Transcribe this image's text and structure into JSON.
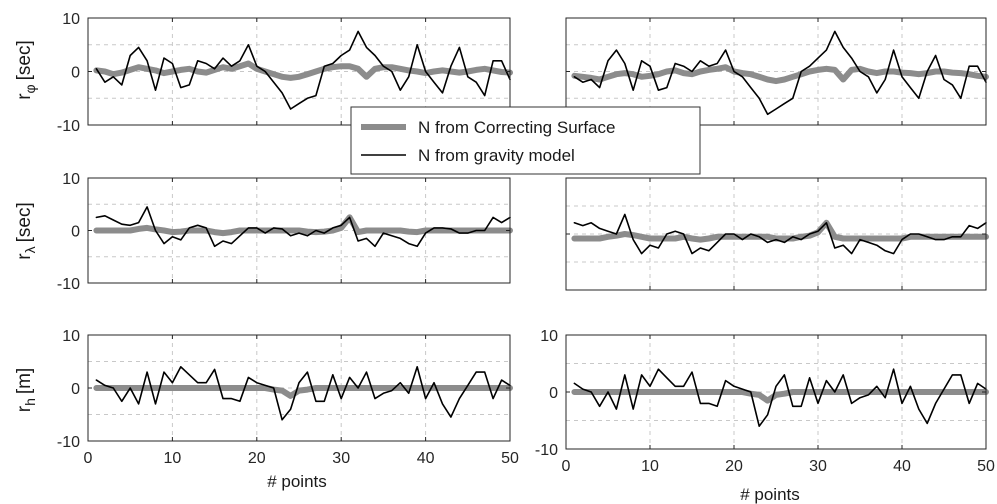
{
  "chart_data": {
    "type": "line",
    "layout": "3 rows x 2 columns",
    "x": [
      1,
      2,
      3,
      4,
      5,
      6,
      7,
      8,
      9,
      10,
      11,
      12,
      13,
      14,
      15,
      16,
      17,
      18,
      19,
      20,
      21,
      22,
      23,
      24,
      25,
      26,
      27,
      28,
      29,
      30,
      31,
      32,
      33,
      34,
      35,
      36,
      37,
      38,
      39,
      40,
      41,
      42,
      43,
      44,
      45,
      46,
      47,
      48,
      49,
      50
    ],
    "xlim": [
      0,
      50
    ],
    "xticks": [
      0,
      10,
      20,
      30,
      40,
      50
    ],
    "xlabel": "# points",
    "grid": true,
    "legend": {
      "placement": "center, overlapping top row",
      "entries": [
        "N from Correcting Surface",
        "N from gravity model"
      ]
    },
    "series_styles": [
      {
        "name": "N from Correcting Surface",
        "color": "#8c8c8c",
        "width": "thick"
      },
      {
        "name": "N from gravity model",
        "color": "#000000",
        "width": "thin"
      }
    ],
    "row_labels": [
      {
        "main": "r",
        "sub": "φ",
        "unit": "[sec]"
      },
      {
        "main": "r",
        "sub": "λ",
        "unit": "[sec]"
      },
      {
        "main": "r",
        "sub": "h",
        "unit": "[m]"
      }
    ],
    "panels": [
      {
        "row": 0,
        "col": 0,
        "ylim": [
          -10,
          10
        ],
        "yticks": [
          -10,
          0,
          10
        ],
        "show_xticks": false,
        "series": [
          {
            "name": "N from Correcting Surface",
            "values": [
              0.2,
              0,
              -0.5,
              -0.2,
              0.3,
              0.8,
              0.5,
              0.2,
              -0.3,
              0,
              0.3,
              0.5,
              0,
              -0.2,
              0.3,
              0.8,
              0.5,
              1,
              1.5,
              0.5,
              0,
              -0.5,
              -1,
              -1.2,
              -1,
              -0.5,
              0,
              0.5,
              0.8,
              1,
              1,
              0.5,
              -1,
              0.5,
              0.8,
              0.8,
              0.5,
              0.2,
              0,
              -0.3,
              0,
              0.2,
              0,
              -0.2,
              0,
              0.3,
              0.5,
              0.2,
              -0.1,
              -0.2
            ]
          },
          {
            "name": "N from gravity model",
            "values": [
              0.5,
              -2,
              -1,
              -2.5,
              3,
              4.5,
              2,
              -3.5,
              2.5,
              1.5,
              -3,
              -2.5,
              2,
              1.5,
              0.5,
              2.5,
              1,
              2,
              5,
              1,
              0,
              -2,
              -4,
              -7,
              -6,
              -5,
              -4.5,
              1,
              1.5,
              3,
              4,
              7.5,
              4.5,
              3,
              1,
              0,
              -3.5,
              -1,
              5,
              0,
              -2,
              -4,
              1,
              4.5,
              -1,
              -2,
              -4.5,
              2,
              2,
              -1.5
            ]
          }
        ]
      },
      {
        "row": 0,
        "col": 1,
        "ylim": [
          -10,
          10
        ],
        "yticks": [],
        "show_xticks": false,
        "series": [
          {
            "name": "N from Correcting Surface",
            "values": [
              -0.8,
              -1,
              -1.2,
              -1.5,
              -1,
              -0.5,
              -0.3,
              -0.5,
              -1,
              -0.8,
              -0.5,
              0,
              0.2,
              -0.3,
              -0.5,
              0,
              0.3,
              0.5,
              0.8,
              0,
              -0.3,
              -0.5,
              -1,
              -1.5,
              -1.8,
              -1.5,
              -1,
              -0.5,
              0,
              0.3,
              0.5,
              0.3,
              -1.5,
              0.3,
              0.5,
              0,
              -0.3,
              0,
              0,
              -0.2,
              -0.3,
              -0.5,
              -0.3,
              0,
              0,
              -0.2,
              -0.3,
              -0.5,
              -0.8,
              -1
            ]
          },
          {
            "name": "N from gravity model",
            "values": [
              -1,
              -2,
              -1.5,
              -3,
              2,
              4,
              1.5,
              -3.5,
              2,
              1,
              -3.5,
              -3,
              1.5,
              1,
              0,
              2,
              1,
              1.5,
              4,
              0,
              -1,
              -3,
              -5,
              -8,
              -7,
              -6,
              -5,
              0,
              1,
              2.5,
              4,
              7.5,
              4.5,
              2.5,
              0,
              -1,
              -4,
              -1.5,
              4,
              -1,
              -3,
              -5,
              0,
              3,
              -1.5,
              -2.5,
              -5,
              1,
              1,
              -2
            ]
          }
        ]
      },
      {
        "row": 1,
        "col": 0,
        "ylim": [
          -10,
          10
        ],
        "yticks": [
          -10,
          0,
          10
        ],
        "show_xticks": false,
        "series": [
          {
            "name": "N from Correcting Surface",
            "values": [
              0,
              0,
              0,
              0,
              0,
              0.3,
              0.5,
              0.2,
              0,
              -0.3,
              -0.2,
              0,
              0,
              0,
              -0.3,
              -0.5,
              -0.3,
              0,
              0,
              0,
              0,
              0,
              0,
              0,
              0,
              -0.2,
              -0.3,
              -0.2,
              0,
              0.5,
              2.5,
              -0.3,
              0,
              0,
              0,
              0,
              0,
              -0.2,
              -0.3,
              0,
              0,
              0,
              0,
              0,
              0,
              0,
              0,
              0,
              0,
              0
            ]
          },
          {
            "name": "N from gravity model",
            "values": [
              2.5,
              2.8,
              2,
              1.2,
              1,
              1.5,
              4.5,
              0,
              -2.5,
              -1.2,
              -1.8,
              0.5,
              1,
              0.5,
              -3,
              -2,
              -2.5,
              -1,
              0.5,
              0.5,
              -0.5,
              0.5,
              0.3,
              -1,
              -0.5,
              -1,
              0,
              -0.5,
              0.5,
              1,
              2.5,
              -2,
              -1.5,
              -3,
              -0.5,
              -1,
              -1.5,
              -2.5,
              -3,
              -0.5,
              0.5,
              0.5,
              0.3,
              -0.5,
              -0.5,
              0,
              0,
              2.5,
              1.5,
              2.5
            ]
          }
        ]
      },
      {
        "row": 1,
        "col": 1,
        "ylim": [
          -10,
          10
        ],
        "yticks": [],
        "show_xticks": false,
        "series": [
          {
            "name": "N from Correcting Surface",
            "values": [
              -0.8,
              -0.8,
              -0.8,
              -0.8,
              -0.5,
              -0.3,
              0,
              -0.2,
              -0.5,
              -0.8,
              -0.8,
              -0.8,
              -0.8,
              -0.5,
              -0.8,
              -1,
              -0.8,
              -0.5,
              -0.5,
              -0.5,
              -0.5,
              -0.5,
              -0.5,
              -0.5,
              -0.8,
              -0.8,
              -0.8,
              -0.5,
              -0.3,
              0.3,
              2,
              -0.5,
              -0.8,
              -0.8,
              -0.8,
              -0.8,
              -0.8,
              -0.8,
              -0.8,
              -0.8,
              -0.5,
              -0.5,
              -0.5,
              -0.5,
              -0.5,
              -0.5,
              -0.5,
              -0.5,
              -0.5,
              -0.5
            ]
          },
          {
            "name": "N from gravity model",
            "values": [
              2,
              1.5,
              2,
              1,
              0.5,
              0,
              3.5,
              -1,
              -3.5,
              -2,
              -2.5,
              0,
              0.5,
              0,
              -3.5,
              -2.5,
              -3,
              -1.5,
              0,
              0,
              -1,
              0,
              -0.5,
              -1.5,
              -1,
              -1.5,
              -0.5,
              -1,
              0,
              0.5,
              2,
              -2.5,
              -2,
              -3.5,
              -1,
              -1.5,
              -2,
              -3,
              -3.5,
              -1,
              0,
              0,
              -0.5,
              -1,
              -1,
              -0.5,
              -0.5,
              1.5,
              1,
              2
            ]
          }
        ]
      },
      {
        "row": 2,
        "col": 0,
        "ylim": [
          -10,
          10
        ],
        "yticks": [
          -10,
          0,
          10
        ],
        "show_xticks": true,
        "series": [
          {
            "name": "N from Correcting Surface",
            "values": [
              0,
              0,
              0,
              0,
              0,
              0,
              0,
              0,
              0,
              0,
              0,
              0,
              0,
              0,
              0,
              0,
              0,
              0,
              0,
              0,
              0,
              -0.3,
              -0.5,
              -1.5,
              -0.5,
              -0.3,
              0,
              0,
              0,
              0,
              0,
              0,
              0,
              0,
              0,
              0,
              0,
              0,
              0,
              0,
              0,
              0,
              0,
              0,
              0,
              0,
              0,
              0,
              0,
              0
            ]
          },
          {
            "name": "N from gravity model",
            "values": [
              1.5,
              0.5,
              0,
              -2.5,
              0,
              -3,
              3,
              -3,
              3,
              1,
              4,
              2.5,
              1,
              1,
              3.5,
              -2,
              -2,
              -2.5,
              2,
              1,
              0.5,
              0,
              -6,
              -4,
              1,
              3,
              -2.5,
              -2.5,
              2.5,
              -2,
              2,
              0,
              3,
              -2,
              -1,
              -0.5,
              1,
              -1,
              4,
              -2,
              1,
              -3,
              -5.5,
              -2,
              0.5,
              3,
              3,
              -2,
              1.5,
              0.5
            ]
          }
        ]
      },
      {
        "row": 2,
        "col": 1,
        "ylim": [
          -10,
          10
        ],
        "yticks": [
          -10,
          0,
          10
        ],
        "show_xticks": true,
        "series": [
          {
            "name": "N from Correcting Surface",
            "values": [
              0,
              0,
              0,
              0,
              0,
              0,
              0,
              0,
              0,
              0,
              0,
              0,
              0,
              0,
              0,
              0,
              0,
              0,
              0,
              0,
              0,
              -0.3,
              -0.5,
              -1.5,
              -0.5,
              -0.3,
              0,
              0,
              0,
              0,
              0,
              0,
              0,
              0,
              0,
              0,
              0,
              0,
              0,
              0,
              0,
              0,
              0,
              0,
              0,
              0,
              0,
              0,
              0,
              0
            ]
          },
          {
            "name": "N from gravity model",
            "values": [
              1.5,
              0.5,
              0,
              -2.5,
              0,
              -3,
              3,
              -3,
              3,
              1,
              4,
              2.5,
              1,
              1,
              3.5,
              -2,
              -2,
              -2.5,
              2,
              1,
              0.5,
              0,
              -6,
              -4,
              1,
              3,
              -2.5,
              -2.5,
              2.5,
              -2,
              2,
              0,
              3,
              -2,
              -1,
              -0.5,
              1,
              -1,
              4,
              -2,
              1,
              -3,
              -5.5,
              -2,
              0.5,
              3,
              3,
              -2,
              1.5,
              0.5
            ]
          }
        ]
      }
    ]
  }
}
